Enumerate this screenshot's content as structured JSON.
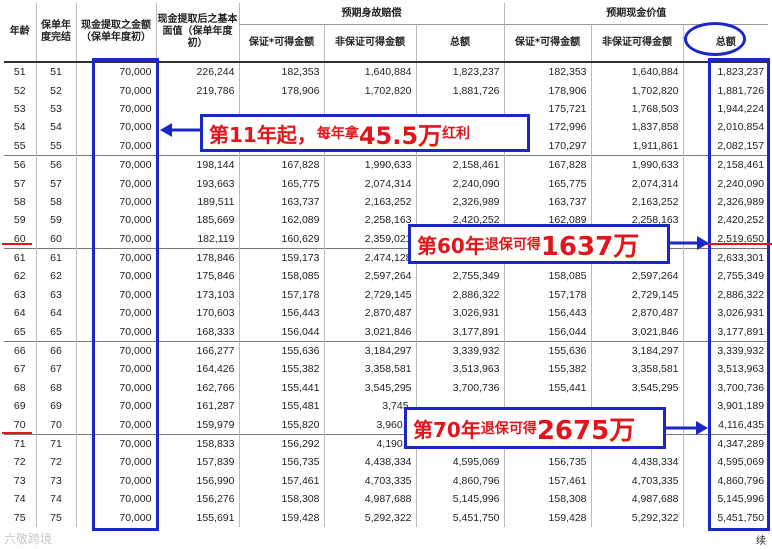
{
  "headers": {
    "age": "年龄",
    "policy_year": "保单年度完结",
    "withdrawal": "现金提取之金额（保单年度初）",
    "basic_after": "现金提取后之基本面值（保单年度初）",
    "death_group": "预期身故赔偿",
    "cash_group": "预期现金价值",
    "guaranteed": "保证*可得金额",
    "non_guaranteed": "非保证可得金额",
    "total": "总额"
  },
  "rows": [
    [
      "51",
      "51",
      "70,000",
      "226,244",
      "182,353",
      "1,640,884",
      "1,823,237",
      "182,353",
      "1,640,884",
      "1,823,237"
    ],
    [
      "52",
      "52",
      "70,000",
      "219,786",
      "178,906",
      "1,702,820",
      "1,881,726",
      "178,906",
      "1,702,820",
      "1,881,726"
    ],
    [
      "53",
      "53",
      "70,000",
      "",
      "",
      "",
      "",
      "175,721",
      "1,768,503",
      "1,944,224"
    ],
    [
      "54",
      "54",
      "70,000",
      "",
      "",
      "",
      "",
      "172,996",
      "1,837,858",
      "2,010,854"
    ],
    [
      "55",
      "55",
      "70,000",
      "",
      "",
      "",
      "",
      "170,297",
      "1,911,861",
      "2,082,157"
    ],
    [
      "56",
      "56",
      "70,000",
      "198,144",
      "167,828",
      "1,990,633",
      "2,158,461",
      "167,828",
      "1,990,633",
      "2,158,461"
    ],
    [
      "57",
      "57",
      "70,000",
      "193,663",
      "165,775",
      "2,074,314",
      "2,240,090",
      "165,775",
      "2,074,314",
      "2,240,090"
    ],
    [
      "58",
      "58",
      "70,000",
      "189,511",
      "163,737",
      "2,163,252",
      "2,326,989",
      "163,737",
      "2,163,252",
      "2,326,989"
    ],
    [
      "59",
      "59",
      "70,000",
      "185,669",
      "162,089",
      "2,258,163",
      "2,420,252",
      "162,089",
      "2,258,163",
      "2,420,252"
    ],
    [
      "60",
      "60",
      "70,000",
      "182,119",
      "160,629",
      "2,359,021",
      "",
      "",
      "",
      "2,519,650"
    ],
    [
      "61",
      "61",
      "70,000",
      "178,846",
      "159,173",
      "2,474,128",
      "",
      "",
      "",
      "2,633,301"
    ],
    [
      "62",
      "62",
      "70,000",
      "175,846",
      "158,085",
      "2,597,264",
      "2,755,349",
      "158,085",
      "2,597,264",
      "2,755,349"
    ],
    [
      "63",
      "63",
      "70,000",
      "173,103",
      "157,178",
      "2,729,145",
      "2,886,322",
      "157,178",
      "2,729,145",
      "2,886,322"
    ],
    [
      "64",
      "64",
      "70,000",
      "170,603",
      "156,443",
      "2,870,487",
      "3,026,931",
      "156,443",
      "2,870,487",
      "3,026,931"
    ],
    [
      "65",
      "65",
      "70,000",
      "168,333",
      "156,044",
      "3,021,846",
      "3,177,891",
      "156,044",
      "3,021,846",
      "3,177,891"
    ],
    [
      "66",
      "66",
      "70,000",
      "166,277",
      "155,636",
      "3,184,297",
      "3,339,932",
      "155,636",
      "3,184,297",
      "3,339,932"
    ],
    [
      "67",
      "67",
      "70,000",
      "164,426",
      "155,382",
      "3,358,581",
      "3,513,963",
      "155,382",
      "3,358,581",
      "3,513,963"
    ],
    [
      "68",
      "68",
      "70,000",
      "162,766",
      "155,441",
      "3,545,295",
      "3,700,736",
      "155,441",
      "3,545,295",
      "3,700,736"
    ],
    [
      "69",
      "69",
      "70,000",
      "161,287",
      "155,481",
      "3,745,",
      "",
      "",
      "",
      "3,901,189"
    ],
    [
      "70",
      "70",
      "70,000",
      "159,979",
      "155,820",
      "3,960,6",
      "",
      "",
      "",
      "4,116,435"
    ],
    [
      "71",
      "71",
      "70,000",
      "158,833",
      "156,292",
      "4,190,9",
      "",
      "",
      "",
      "4,347,289"
    ],
    [
      "72",
      "72",
      "70,000",
      "157,839",
      "156,735",
      "4,438,334",
      "4,595,069",
      "156,735",
      "4,438,334",
      "4,595,069"
    ],
    [
      "73",
      "73",
      "70,000",
      "156,990",
      "157,461",
      "4,703,335",
      "4,860,796",
      "157,461",
      "4,703,335",
      "4,860,796"
    ],
    [
      "74",
      "74",
      "70,000",
      "156,276",
      "158,308",
      "4,987,688",
      "5,145,996",
      "158,308",
      "4,987,688",
      "5,145,996"
    ],
    [
      "75",
      "75",
      "70,000",
      "155,691",
      "159,428",
      "5,292,322",
      "5,451,750",
      "159,428",
      "5,292,322",
      "5,451,750"
    ]
  ],
  "callouts": {
    "c1_a": "第11年起，",
    "c1_b": "每年拿",
    "c1_c": "45.5万",
    "c1_d": "红利",
    "c2_a": "第60年",
    "c2_b": "退保可得",
    "c2_c": "1637万",
    "c3_a": "第70年",
    "c3_b": "退保可得",
    "c3_c": "2675万"
  },
  "watermark": "六敬跨境",
  "continued": "续",
  "colors": {
    "box": "#1a28c8",
    "callout_text": "#e1161c"
  }
}
